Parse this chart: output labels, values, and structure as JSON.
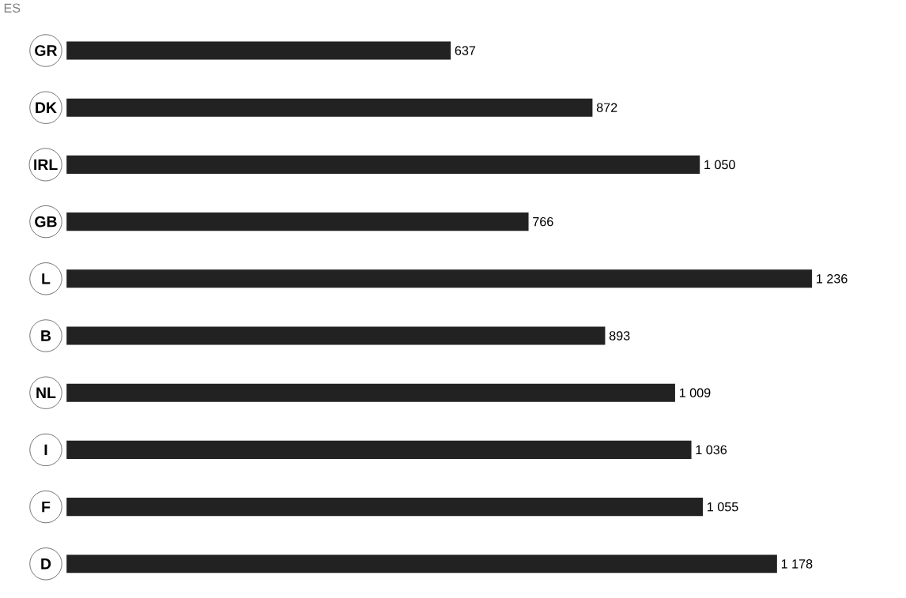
{
  "chart_data": {
    "type": "bar",
    "orientation": "horizontal",
    "annotations": [
      "ES"
    ],
    "categories": [
      "GR",
      "DK",
      "IRL",
      "GB",
      "L",
      "B",
      "NL",
      "I",
      "F",
      "D"
    ],
    "values": [
      637,
      872,
      1050,
      766,
      1236,
      893,
      1009,
      1036,
      1055,
      1178
    ],
    "value_labels": [
      "637",
      "872",
      "1 050",
      "766",
      "1 236",
      "893",
      "1 009",
      "1 036",
      "1 055",
      "1 178"
    ],
    "color": "#222222"
  }
}
